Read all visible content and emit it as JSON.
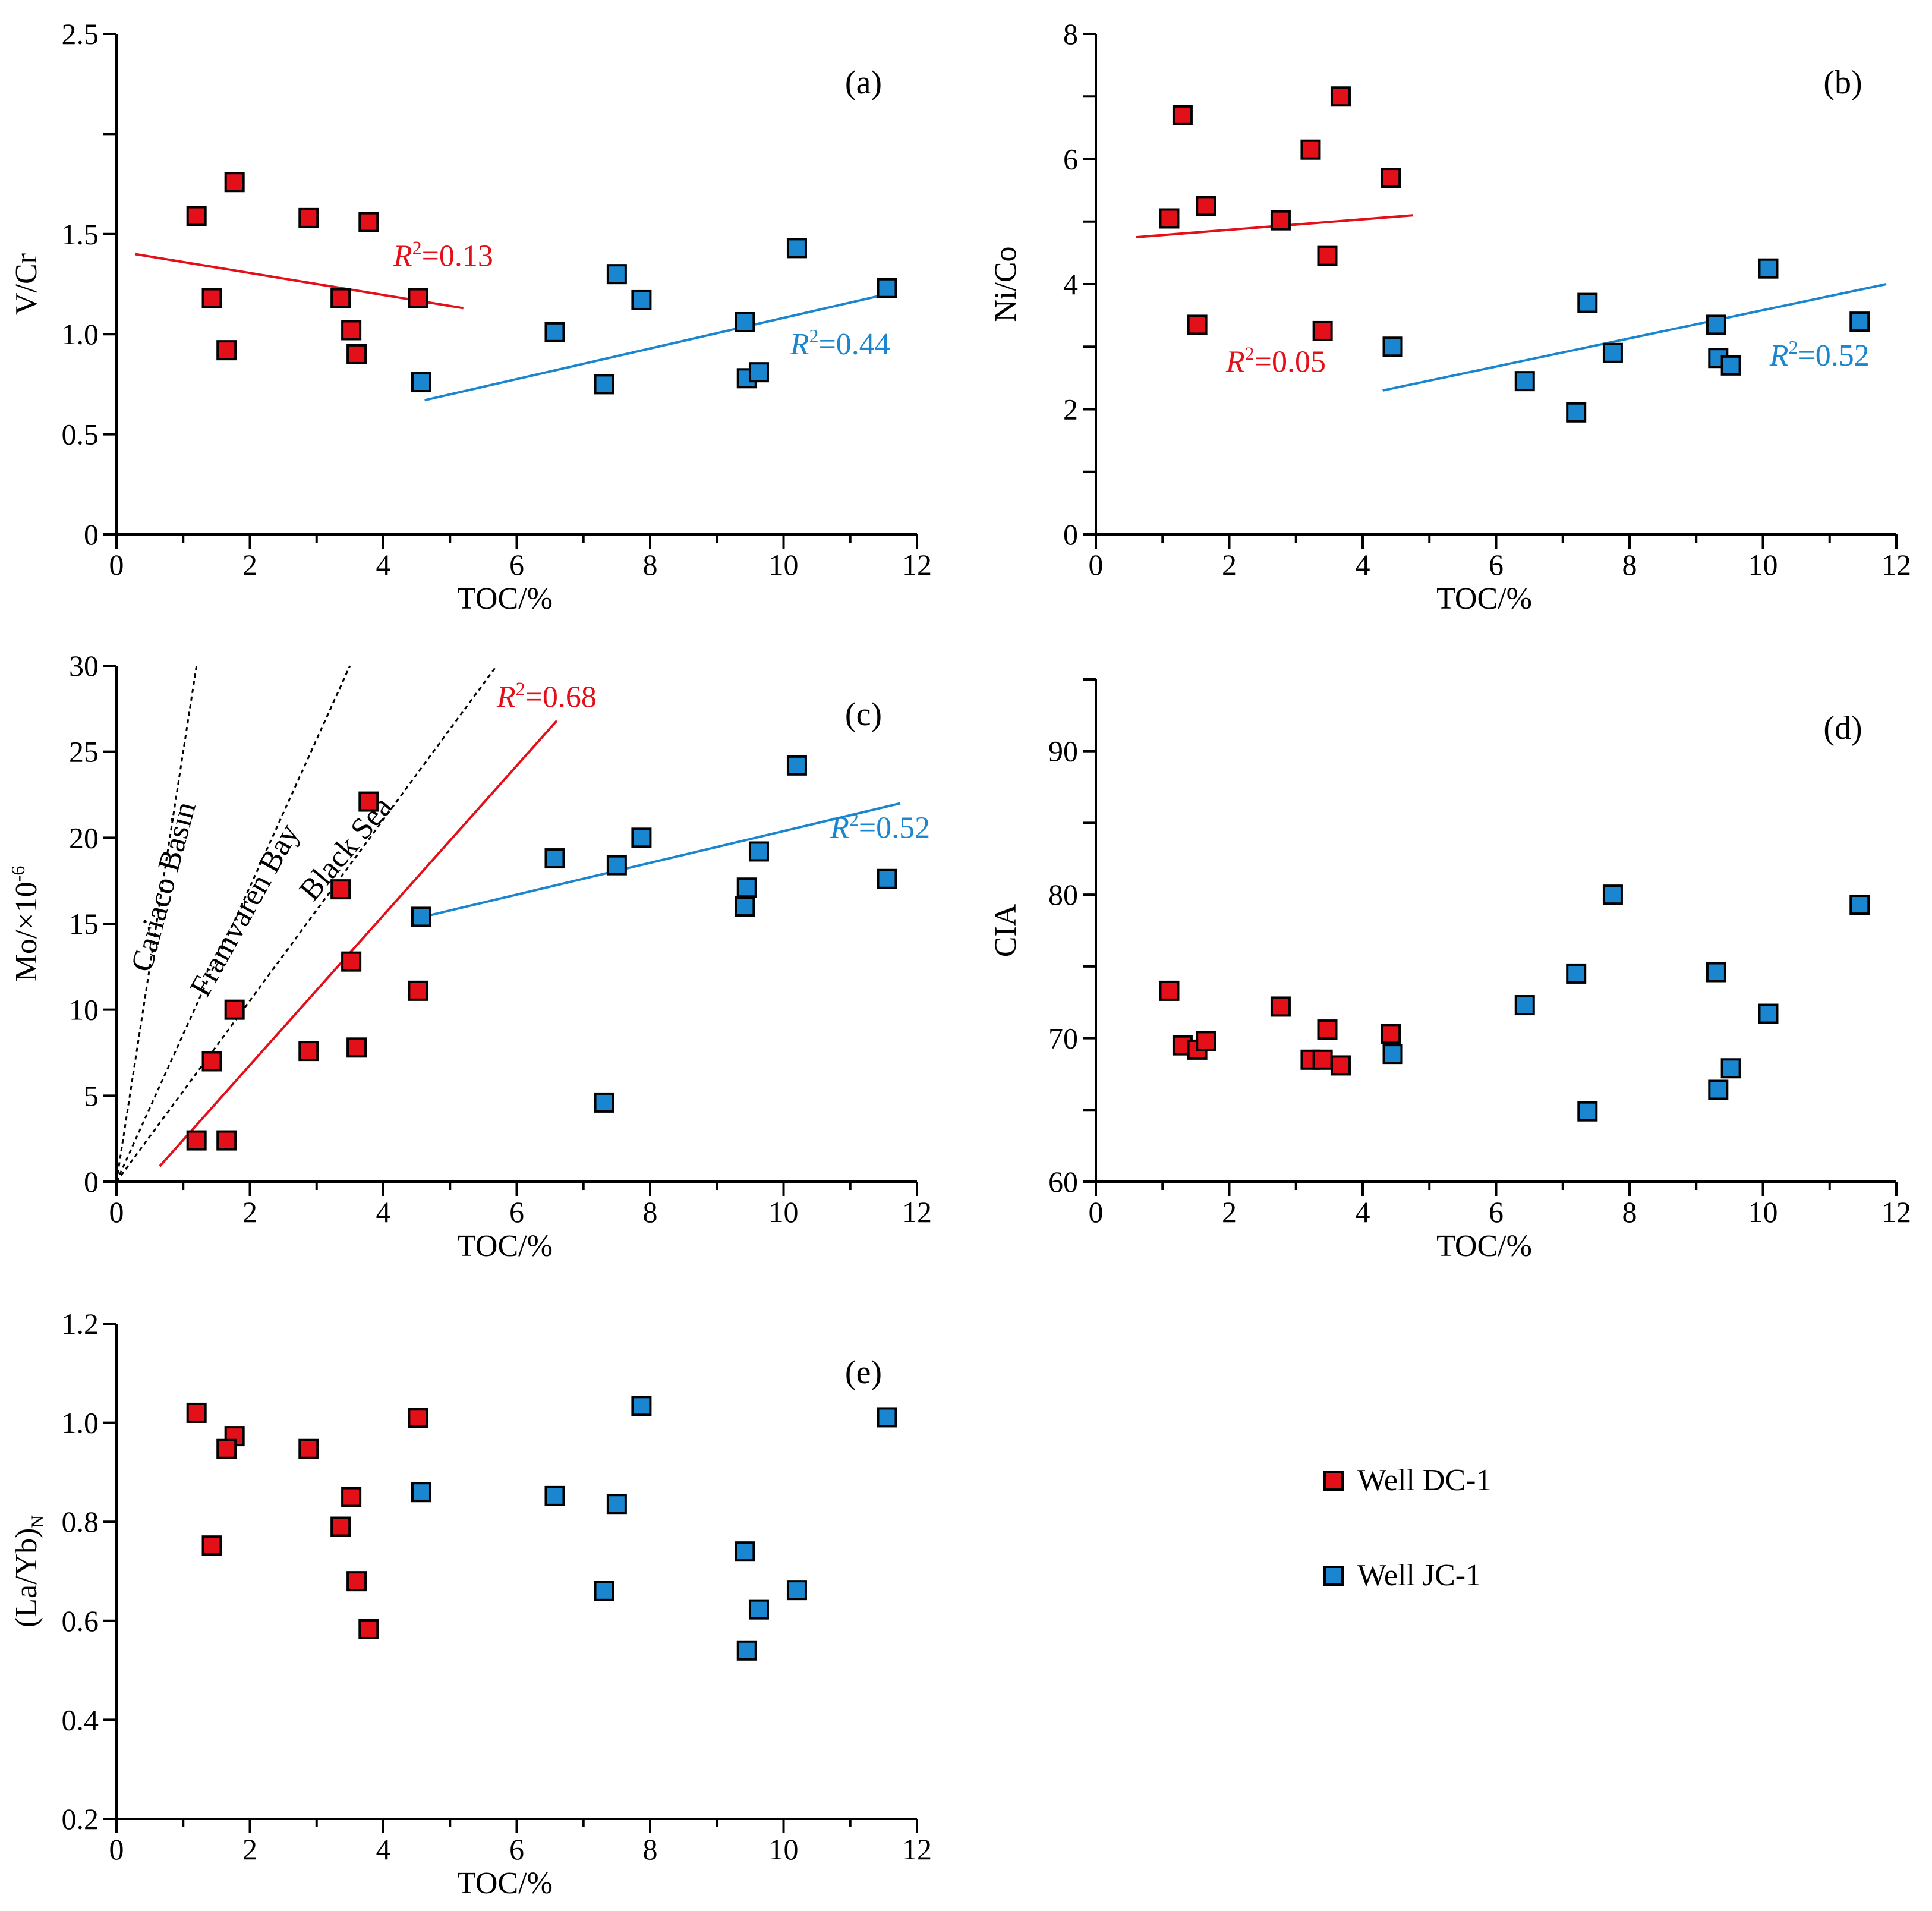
{
  "colors": {
    "dc1": "#e3101a",
    "jc1": "#1a86cf",
    "r2_dc": "#e3101a",
    "r2_jc": "#1a8ed6"
  },
  "legend": {
    "dc1": "Well DC-1",
    "jc1": "Well JC-1"
  },
  "chart_data": [
    {
      "id": "a",
      "type": "scatter",
      "panel_label": "(a)",
      "xlabel": "TOC/%",
      "ylabel": "V/Cr",
      "xlim": [
        0,
        12
      ],
      "ylim": [
        0,
        2.5
      ],
      "xticks": [
        0,
        2,
        4,
        6,
        8,
        10,
        12
      ],
      "yticks": [
        0,
        0.5,
        1.0,
        1.5,
        2.5
      ],
      "ytick_labels": [
        "0",
        "0.5",
        "1.0",
        "1.5",
        "2.5"
      ],
      "ytick_positions": [
        0,
        0.5,
        1.0,
        1.5,
        2.0,
        2.5
      ],
      "series": [
        {
          "name": "Well DC-1",
          "color_key": "dc1",
          "x": [
            1.2,
            1.77,
            2.88,
            3.78,
            1.43,
            3.36,
            4.52,
            1.65,
            3.52,
            3.6
          ],
          "y": [
            1.59,
            1.76,
            1.58,
            1.56,
            1.18,
            1.18,
            1.18,
            0.92,
            1.02,
            0.9
          ]
        },
        {
          "name": "Well JC-1",
          "color_key": "jc1",
          "x": [
            10.2,
            11.55,
            7.5,
            7.87,
            6.57,
            9.42,
            4.57,
            7.31,
            9.45,
            9.63
          ],
          "y": [
            1.43,
            1.23,
            1.3,
            1.17,
            1.01,
            1.06,
            0.76,
            0.75,
            0.78,
            0.81
          ]
        }
      ],
      "trendlines": [
        {
          "color_key": "dc1",
          "x": [
            0.28,
            5.2
          ],
          "y": [
            1.4,
            1.13
          ],
          "label": "=0.13",
          "r_symbol": "R",
          "r_sup": "2",
          "label_at": [
            4.15,
            1.34
          ]
        },
        {
          "color_key": "jc1",
          "x": [
            4.62,
            11.55
          ],
          "y": [
            0.67,
            1.2
          ],
          "label": "=0.44",
          "r_symbol": "R",
          "r_sup": "2",
          "label_at": [
            10.1,
            0.9
          ]
        }
      ]
    },
    {
      "id": "b",
      "type": "scatter",
      "panel_label": "(b)",
      "xlabel": "TOC/%",
      "ylabel": "Ni/Co",
      "xlim": [
        0,
        12
      ],
      "ylim": [
        0,
        8
      ],
      "xticks": [
        0,
        2,
        4,
        6,
        8,
        10,
        12
      ],
      "yticks": [
        0,
        2,
        4,
        6,
        8
      ],
      "ytick_labels": [
        "0",
        "2",
        "4",
        "6",
        "8"
      ],
      "ytick_positions": [
        0,
        1,
        2,
        3,
        4,
        5,
        6,
        7,
        8
      ],
      "series": [
        {
          "name": "Well DC-1",
          "color_key": "dc1",
          "x": [
            1.3,
            3.67,
            3.22,
            4.42,
            1.65,
            1.1,
            2.77,
            3.47,
            1.52,
            3.4
          ],
          "y": [
            6.7,
            7.0,
            6.15,
            5.7,
            5.25,
            5.05,
            5.02,
            4.45,
            3.35,
            3.25
          ]
        },
        {
          "name": "Well JC-1",
          "color_key": "jc1",
          "x": [
            10.08,
            7.37,
            11.45,
            9.3,
            4.45,
            7.75,
            9.33,
            9.52,
            6.43,
            7.2
          ],
          "y": [
            4.25,
            3.7,
            3.4,
            3.35,
            3.0,
            2.9,
            2.82,
            2.7,
            2.45,
            1.95
          ]
        }
      ],
      "trendlines": [
        {
          "color_key": "dc1",
          "x": [
            0.6,
            4.75
          ],
          "y": [
            4.75,
            5.1
          ],
          "label": "=0.05",
          "r_symbol": "R",
          "r_sup": "2",
          "label_at": [
            1.95,
            2.6
          ]
        },
        {
          "color_key": "jc1",
          "x": [
            4.3,
            11.85
          ],
          "y": [
            2.3,
            4.0
          ],
          "label": "=0.52",
          "r_symbol": "R",
          "r_sup": "2",
          "label_at": [
            10.1,
            2.7
          ]
        }
      ]
    },
    {
      "id": "c",
      "type": "scatter",
      "panel_label": "(c)",
      "xlabel": "TOC/%",
      "ylabel": "Mo/×10",
      "ylabel_sup": "-6",
      "xlim": [
        0,
        12
      ],
      "ylim": [
        0,
        30
      ],
      "xticks": [
        0,
        2,
        4,
        6,
        8,
        10,
        12
      ],
      "yticks": [
        0,
        5,
        10,
        15,
        20,
        25,
        30
      ],
      "ytick_labels": [
        "0",
        "5",
        "10",
        "15",
        "20",
        "25",
        "30"
      ],
      "ytick_positions": [
        0,
        5,
        10,
        15,
        20,
        25,
        30
      ],
      "series": [
        {
          "name": "Well DC-1",
          "color_key": "dc1",
          "x": [
            3.78,
            3.36,
            3.52,
            4.52,
            1.77,
            2.88,
            3.6,
            1.43,
            1.2,
            1.65
          ],
          "y": [
            22.1,
            17.0,
            12.8,
            11.1,
            10.0,
            7.6,
            7.8,
            7.0,
            2.4,
            2.4
          ]
        },
        {
          "name": "Well JC-1",
          "color_key": "jc1",
          "x": [
            10.2,
            7.87,
            9.63,
            6.57,
            7.5,
            11.55,
            9.45,
            9.42,
            4.57,
            7.31
          ],
          "y": [
            24.2,
            20.0,
            19.2,
            18.8,
            18.4,
            17.6,
            17.1,
            16.0,
            15.4,
            4.6
          ]
        }
      ],
      "trendlines": [
        {
          "color_key": "dc1",
          "x": [
            0.65,
            6.6
          ],
          "y": [
            0.9,
            26.8
          ],
          "label": "=0.68",
          "r_symbol": "R",
          "r_sup": "2",
          "label_at": [
            5.7,
            27.6
          ]
        },
        {
          "color_key": "jc1",
          "x": [
            4.6,
            11.75
          ],
          "y": [
            15.4,
            22.0
          ],
          "label": "=0.52",
          "r_symbol": "R",
          "r_sup": "2",
          "label_at": [
            10.7,
            20.0
          ]
        }
      ],
      "reference_lines": [
        {
          "label": "Cariaco Basin",
          "x": [
            0,
            1.2
          ],
          "y": [
            0,
            30
          ],
          "label_at": [
            0.85,
            17
          ],
          "angle": -75
        },
        {
          "label": "Framvaren Bay",
          "x": [
            0,
            3.5
          ],
          "y": [
            0,
            30
          ],
          "label_at": [
            2.05,
            15.5
          ],
          "angle": -61
        },
        {
          "label": "Black Sea",
          "x": [
            0,
            5.7
          ],
          "y": [
            0,
            30
          ],
          "label_at": [
            3.55,
            19
          ],
          "angle": -50
        }
      ]
    },
    {
      "id": "d",
      "type": "scatter",
      "panel_label": "(d)",
      "xlabel": "TOC/%",
      "ylabel": "CIA",
      "xlim": [
        0,
        12
      ],
      "ylim": [
        60,
        95
      ],
      "xticks": [
        0,
        2,
        4,
        6,
        8,
        10,
        12
      ],
      "yticks": [
        60,
        70,
        80,
        90
      ],
      "ytick_labels": [
        "60",
        "70",
        "80",
        "90"
      ],
      "ytick_positions": [
        60,
        65,
        70,
        75,
        80,
        85,
        90,
        95
      ],
      "series": [
        {
          "name": "Well DC-1",
          "color_key": "dc1",
          "x": [
            1.1,
            2.77,
            3.47,
            4.42,
            1.3,
            1.52,
            1.65,
            3.22,
            3.4,
            3.67
          ],
          "y": [
            73.3,
            72.2,
            70.6,
            70.3,
            69.5,
            69.2,
            69.8,
            68.5,
            68.5,
            68.1
          ]
        },
        {
          "name": "Well JC-1",
          "color_key": "jc1",
          "x": [
            7.75,
            11.45,
            7.2,
            9.3,
            6.43,
            10.08,
            4.45,
            9.52,
            9.33,
            7.37
          ],
          "y": [
            80.0,
            79.3,
            74.5,
            74.6,
            72.3,
            71.7,
            68.9,
            67.9,
            66.4,
            64.9
          ]
        }
      ],
      "trendlines": []
    },
    {
      "id": "e",
      "type": "scatter",
      "panel_label": "(e)",
      "xlabel": "TOC/%",
      "ylabel": "(La/Yb)",
      "ylabel_sub": "N",
      "xlim": [
        0,
        12
      ],
      "ylim": [
        0.2,
        1.2
      ],
      "xticks": [
        0,
        2,
        4,
        6,
        8,
        10,
        12
      ],
      "yticks": [
        0.2,
        0.4,
        0.6,
        0.8,
        1.0,
        1.2
      ],
      "ytick_labels": [
        "0.2",
        "0.4",
        "0.6",
        "0.8",
        "1.0",
        "1.2"
      ],
      "ytick_positions": [
        0.2,
        0.4,
        0.6,
        0.8,
        1.0,
        1.2
      ],
      "series": [
        {
          "name": "Well DC-1",
          "color_key": "dc1",
          "x": [
            1.2,
            4.52,
            1.77,
            1.65,
            2.88,
            3.52,
            3.36,
            1.43,
            3.6,
            3.78
          ],
          "y": [
            1.02,
            1.01,
            0.973,
            0.947,
            0.947,
            0.85,
            0.79,
            0.752,
            0.68,
            0.583
          ]
        },
        {
          "name": "Well JC-1",
          "color_key": "jc1",
          "x": [
            7.87,
            11.55,
            4.57,
            6.57,
            7.5,
            9.42,
            7.31,
            10.2,
            9.63,
            9.45
          ],
          "y": [
            1.034,
            1.011,
            0.86,
            0.852,
            0.836,
            0.74,
            0.66,
            0.662,
            0.623,
            0.54
          ]
        }
      ],
      "trendlines": []
    }
  ]
}
